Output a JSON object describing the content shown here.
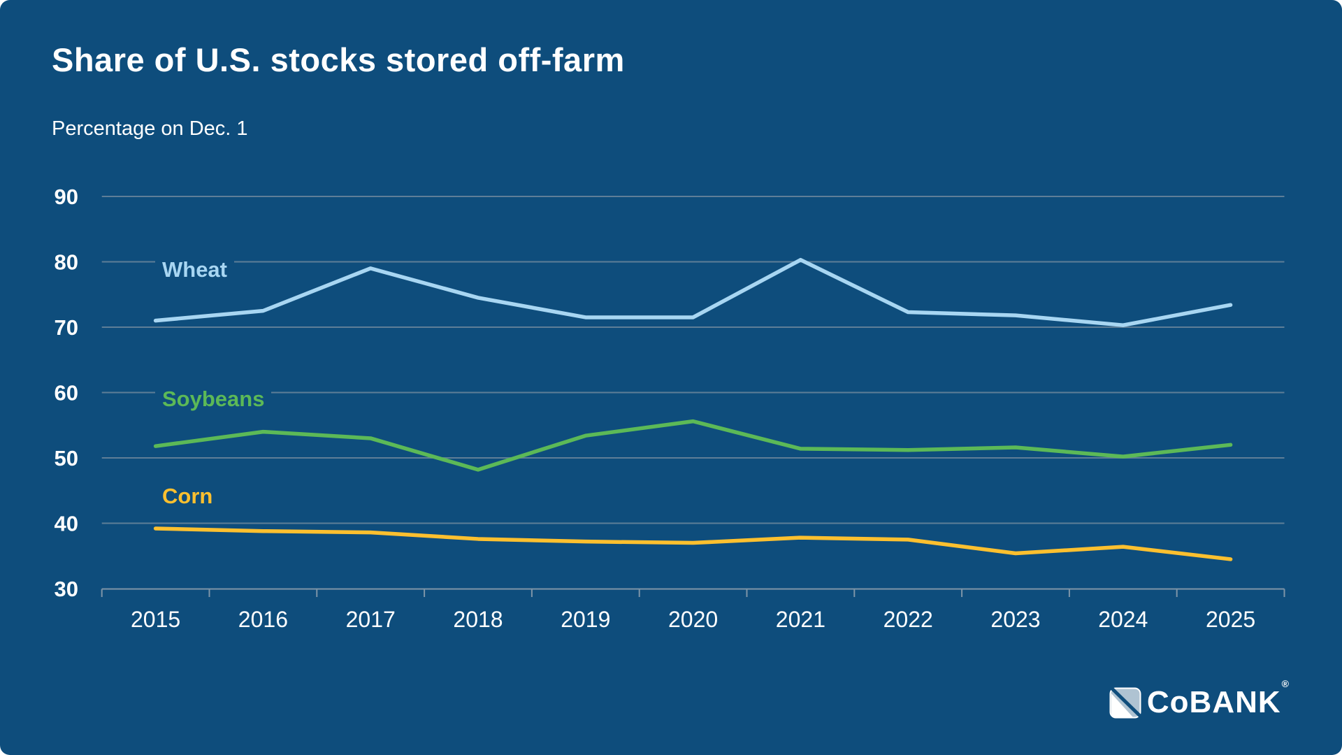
{
  "header": {
    "title": "Share of U.S. stocks stored off-farm",
    "subtitle": "Percentage on Dec. 1"
  },
  "chart_data": {
    "type": "line",
    "x": [
      2015,
      2016,
      2017,
      2018,
      2019,
      2020,
      2021,
      2022,
      2023,
      2024,
      2025
    ],
    "series": [
      {
        "name": "Wheat",
        "color": "#A8D6F2",
        "values": [
          71.0,
          72.5,
          79.0,
          74.5,
          71.5,
          71.5,
          80.3,
          72.3,
          71.8,
          70.3,
          73.4
        ]
      },
      {
        "name": "Soybeans",
        "color": "#5CB957",
        "values": [
          51.8,
          54.0,
          53.0,
          48.2,
          53.4,
          55.6,
          51.4,
          51.2,
          51.6,
          50.2,
          52.0
        ]
      },
      {
        "name": "Corn",
        "color": "#FDC02F",
        "values": [
          39.2,
          38.8,
          38.6,
          37.6,
          37.2,
          37.0,
          37.8,
          37.5,
          35.4,
          36.4,
          34.5
        ]
      }
    ],
    "ylim": [
      30,
      90
    ],
    "yticks": [
      30,
      40,
      50,
      60,
      70,
      80,
      90
    ],
    "grid": "horizontal",
    "legend": "inline-labels",
    "title": "Share of U.S. stocks stored off-farm",
    "ylabel": "Percentage on Dec. 1",
    "xlabel": ""
  },
  "logo": {
    "text": "CoBANK",
    "reg_mark": "®"
  },
  "colors": {
    "background": "#0E4D7C",
    "gridline": "#5E7E97",
    "axis": "#7E95A8",
    "text": "#FFFFFF"
  }
}
